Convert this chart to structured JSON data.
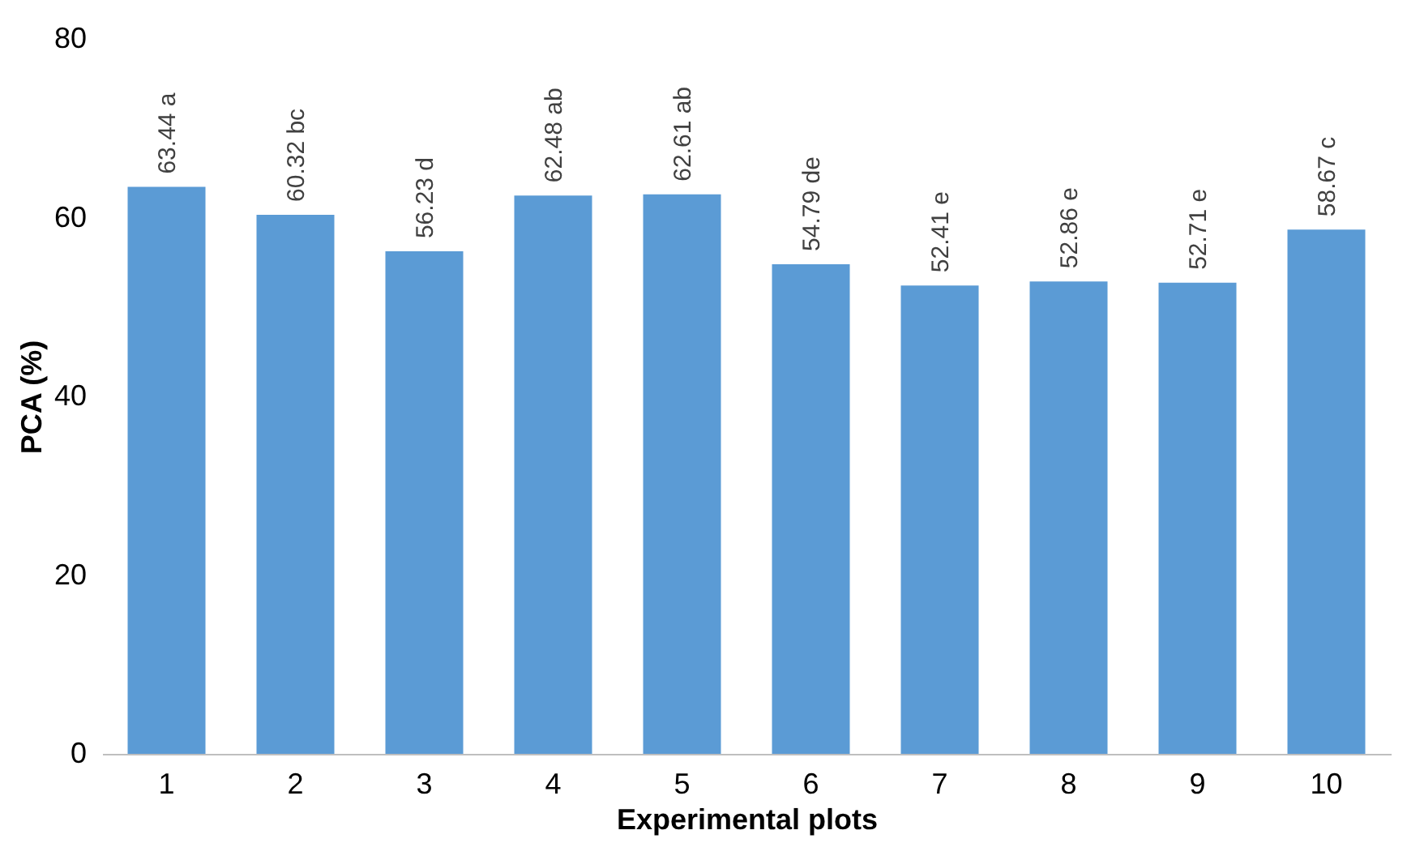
{
  "chart_data": {
    "type": "bar",
    "xlabel": "Experimental plots",
    "ylabel": "PCA (%)",
    "categories": [
      "1",
      "2",
      "3",
      "4",
      "5",
      "6",
      "7",
      "8",
      "9",
      "10"
    ],
    "values": [
      63.44,
      60.32,
      56.23,
      62.48,
      62.61,
      54.79,
      52.41,
      52.86,
      52.71,
      58.67
    ],
    "value_labels": [
      "63.44 a",
      "60.32 bc",
      "56.23 d",
      "62.48 ab",
      "62.61 ab",
      "54.79 de",
      "52.41 e",
      "52.86 e",
      "52.71 e",
      "58.67 c"
    ],
    "color": "#5b9bd5",
    "ylim": [
      0,
      80
    ],
    "yticks": [
      0,
      20,
      40,
      60,
      80
    ],
    "grid": false
  }
}
